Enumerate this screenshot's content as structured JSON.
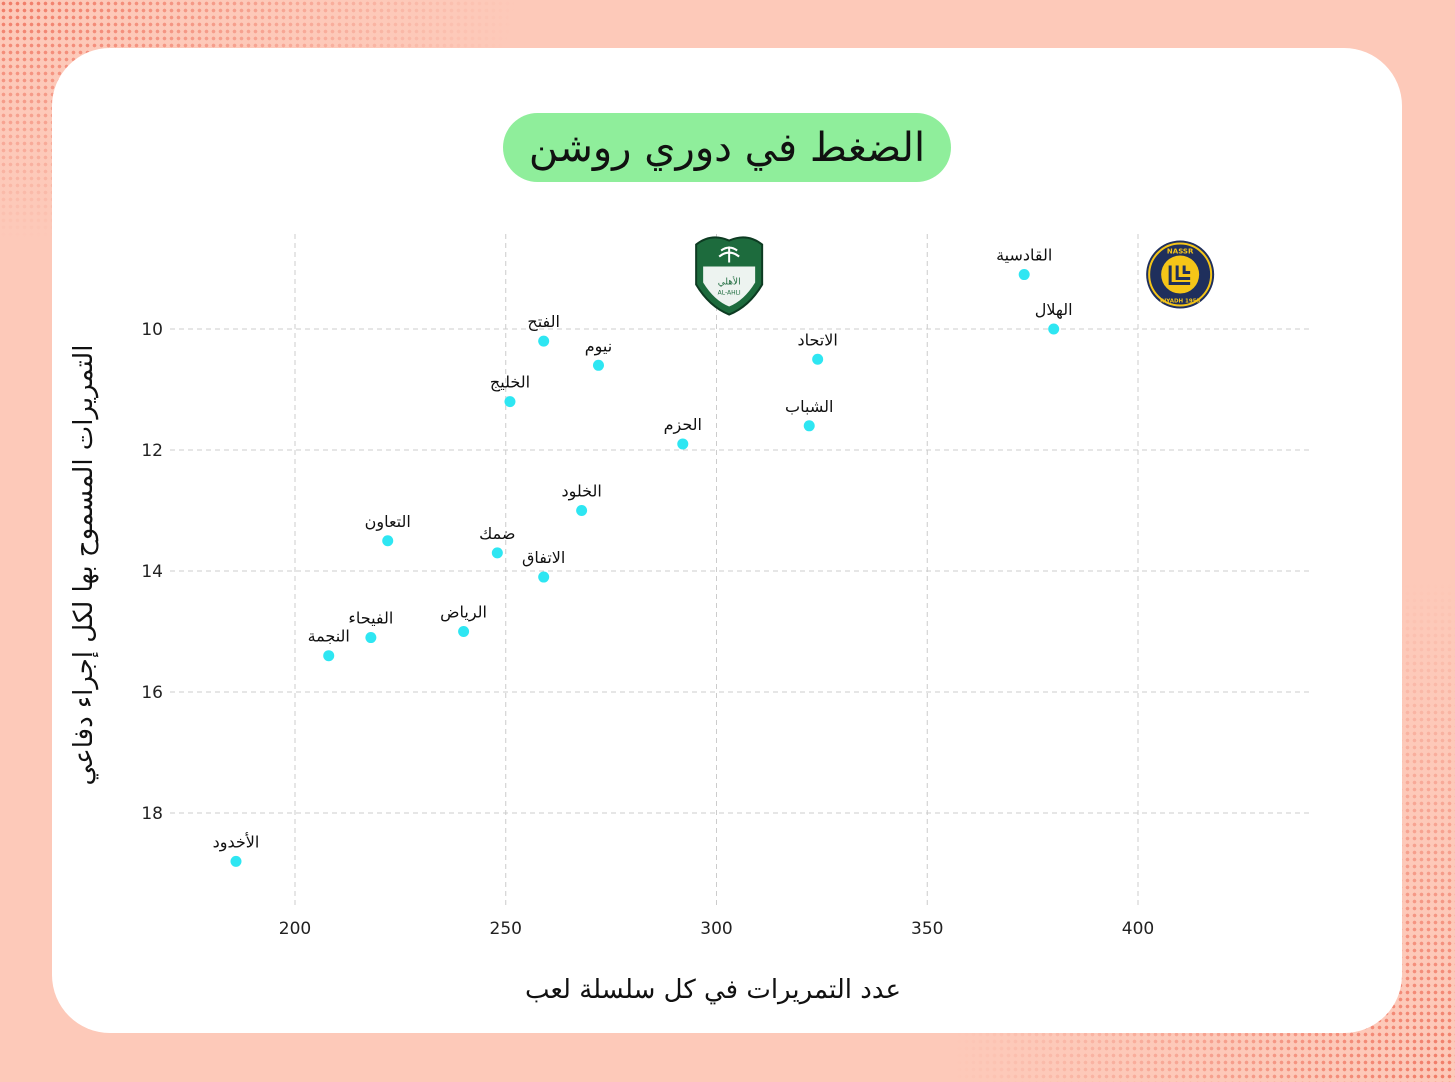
{
  "colors": {
    "background": "#fdc9b9",
    "dots": "#f07a66",
    "card": "#ffffff",
    "title_pill": "#8fee9b",
    "point": "#2ee6f2",
    "grid": "#cccccc",
    "ahli_badge": "#1d6b3d",
    "nassr_badge": "#1f2f5c",
    "nassr_ring": "#f5c518"
  },
  "chart_data": {
    "type": "scatter",
    "title": "الضغط في دوري روشن",
    "xlabel": "عدد التمريرات في كل سلسلة لعب",
    "ylabel": "التمريرات المسموح بها لكل إجراء دفاعي",
    "xlim": [
      170,
      440
    ],
    "ylim": [
      8.6,
      19.2
    ],
    "y_inverted": true,
    "xticks": [
      200,
      250,
      300,
      350,
      400
    ],
    "yticks": [
      10,
      12,
      14,
      16,
      18
    ],
    "grid": true,
    "points": [
      {
        "label": "القادسية",
        "x": 373,
        "y": 9.1
      },
      {
        "label": "الهلال",
        "x": 380,
        "y": 10.0
      },
      {
        "label": "الفتح",
        "x": 259,
        "y": 10.2
      },
      {
        "label": "نيوم",
        "x": 272,
        "y": 10.6
      },
      {
        "label": "الاتحاد",
        "x": 324,
        "y": 10.5
      },
      {
        "label": "الخليج",
        "x": 251,
        "y": 11.2
      },
      {
        "label": "الشباب",
        "x": 322,
        "y": 11.6
      },
      {
        "label": "الحزم",
        "x": 292,
        "y": 11.9
      },
      {
        "label": "الخلود",
        "x": 268,
        "y": 13.0
      },
      {
        "label": "التعاون",
        "x": 222,
        "y": 13.5
      },
      {
        "label": "ضمك",
        "x": 248,
        "y": 13.7
      },
      {
        "label": "الاتفاق",
        "x": 259,
        "y": 14.1
      },
      {
        "label": "الرياض",
        "x": 240,
        "y": 15.0
      },
      {
        "label": "الفيحاء",
        "x": 218,
        "y": 15.1
      },
      {
        "label": "النجمة",
        "x": 208,
        "y": 15.4
      },
      {
        "label": "الأخدود",
        "x": 186,
        "y": 18.8
      }
    ],
    "logos": [
      {
        "name": "ahli-logo",
        "x": 303,
        "y": 9.1,
        "text_main": "الأهلي",
        "text_sub": "AL-AHLI"
      },
      {
        "name": "nassr-logo",
        "x": 410,
        "y": 9.1,
        "text_top": "NASSR",
        "text_bottom": "RIYADH 1955"
      }
    ]
  }
}
